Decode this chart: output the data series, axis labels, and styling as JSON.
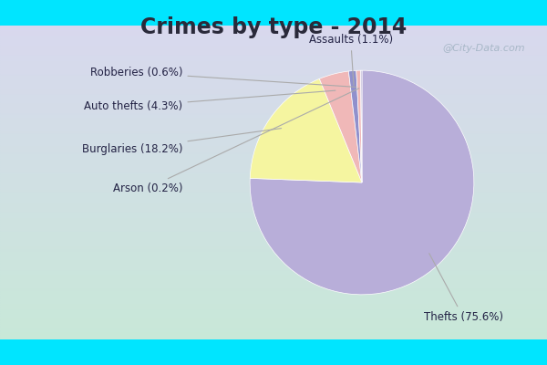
{
  "title": "Crimes by type - 2014",
  "title_fontsize": 17,
  "title_fontweight": "bold",
  "title_color": "#2a2a3a",
  "background_outer": "#00e5ff",
  "slices": [
    {
      "label": "Thefts",
      "pct": 75.6,
      "color": "#b8aed9"
    },
    {
      "label": "Burglaries",
      "pct": 18.2,
      "color": "#f5f5a0"
    },
    {
      "label": "Auto thefts",
      "pct": 4.3,
      "color": "#f0b8b8"
    },
    {
      "label": "Assaults",
      "pct": 1.1,
      "color": "#9090cc"
    },
    {
      "label": "Robberies",
      "pct": 0.6,
      "color": "#f0b8b8"
    },
    {
      "label": "Arson",
      "pct": 0.2,
      "color": "#c0b8d8"
    }
  ],
  "label_fontsize": 8.5,
  "label_color": "#222244",
  "watermark": "@City-Data.com",
  "watermark_color": "#a8b8c8",
  "bg_top_color": "#c8e8d8",
  "bg_bottom_color": "#d8d8ee"
}
